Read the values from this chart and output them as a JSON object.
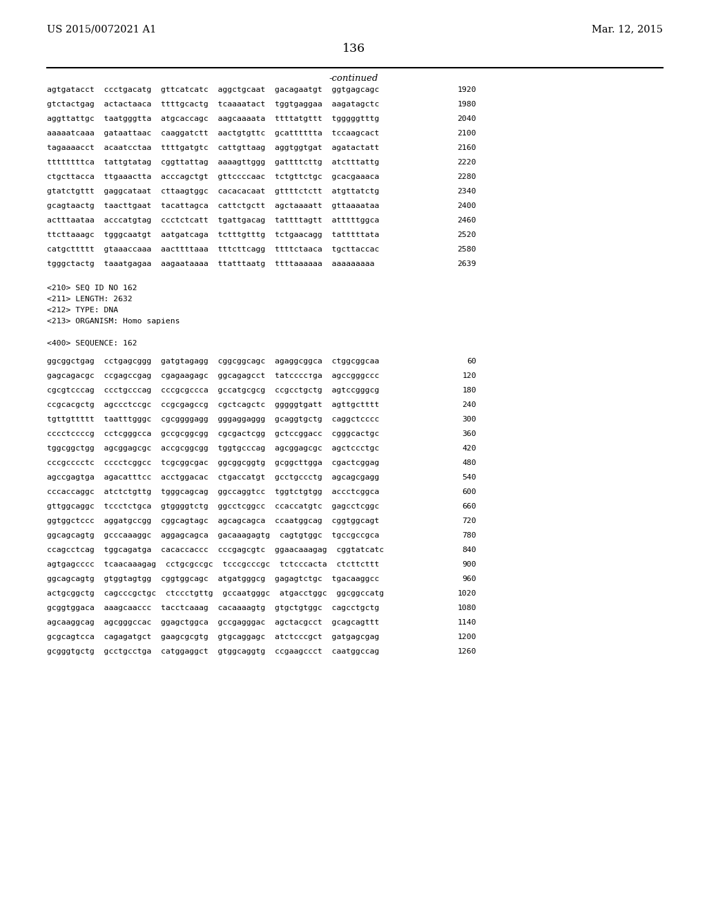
{
  "header_left": "US 2015/0072021 A1",
  "header_right": "Mar. 12, 2015",
  "page_number": "136",
  "continued_label": "-continued",
  "bg_color": "#ffffff",
  "text_color": "#000000",
  "sequence_lines_top": [
    [
      "agtgatacct  ccctgacatg  gttcatcatc  aggctgcaat  gacagaatgt  ggtgagcagc",
      "1920"
    ],
    [
      "gtctactgag  actactaaca  ttttgcactg  tcaaaatact  tggtgaggaa  aagatagctc",
      "1980"
    ],
    [
      "aggttattgc  taatgggtta  atgcaccagc  aagcaaaata  ttttatgttt  tgggggtttg",
      "2040"
    ],
    [
      "aaaaatcaaa  gataattaac  caaggatctt  aactgtgttc  gcatttttta  tccaagcact",
      "2100"
    ],
    [
      "tagaaaacct  acaatcctaa  ttttgatgtc  cattgttaag  aggtggtgat  agatactatt",
      "2160"
    ],
    [
      "ttttttttca  tattgtatag  cggttattag  aaaagttggg  gattttcttg  atctttattg",
      "2220"
    ],
    [
      "ctgcttacca  ttgaaactta  acccagctgt  gttccccaac  tctgttctgc  gcacgaaaca",
      "2280"
    ],
    [
      "gtatctgttt  gaggcataat  cttaagtggc  cacacacaat  gttttctctt  atgttatctg",
      "2340"
    ],
    [
      "gcagtaactg  taacttgaat  tacattagca  cattctgctt  agctaaaatt  gttaaaataa",
      "2400"
    ],
    [
      "actttaataa  acccatgtag  ccctctcatt  tgattgacag  tattttagtt  atttttggca",
      "2460"
    ],
    [
      "ttcttaaagc  tgggcaatgt  aatgatcaga  tctttgtttg  tctgaacagg  tatttttata",
      "2520"
    ],
    [
      "catgcttttt  gtaaaccaaa  aacttttaaa  tttcttcagg  ttttctaaca  tgcttaccac",
      "2580"
    ],
    [
      "tgggctactg  taaatgagaa  aagaataaaa  ttatttaatg  ttttaaaaaa  aaaaaaaaa",
      "2639"
    ]
  ],
  "meta_lines": [
    "<210> SEQ ID NO 162",
    "<211> LENGTH: 2632",
    "<212> TYPE: DNA",
    "<213> ORGANISM: Homo sapiens",
    "",
    "<400> SEQUENCE: 162"
  ],
  "sequence_lines_bottom": [
    [
      "ggcggctgag  cctgagcggg  gatgtagagg  cggcggcagc  agaggcggca  ctggcggcaa",
      "60"
    ],
    [
      "gagcagacgc  ccgagccgag  cgagaagagc  ggcagagcct  tatccccтga  agccgggccc",
      "120"
    ],
    [
      "cgcgtcccag  ccctgcccag  cccgcgccca  gccatgcgcg  ccgcctgctg  agtccgggcg",
      "180"
    ],
    [
      "ccgcacgctg  agccctccgc  ccgcgagccg  cgctcagctc  gggggtgatt  agttgctttt",
      "240"
    ],
    [
      "tgttgttttt  taatttgggc  cgcggggagg  gggaggaggg  gcaggtgctg  caggctcccc",
      "300"
    ],
    [
      "cccctccccg  cctcgggcca  gccgcggcgg  cgcgactcgg  gctccggacc  cgggcactgc",
      "360"
    ],
    [
      "tggcggctgg  agcggagcgc  accgcggcgg  tggtgcccag  agcggagcgc  agctccctgc",
      "420"
    ],
    [
      "cccgcccctc  cccctcggcc  tcgcggcgac  ggcggcggtg  gcggcttgga  cgactcggag",
      "480"
    ],
    [
      "agccgagtga  agacatttcc  acctggacac  ctgaccatgt  gcctgccctg  agcagcgagg",
      "540"
    ],
    [
      "cccaccaggc  atctctgttg  tgggcagcag  ggccaggtcc  tggtctgtgg  accctcggca",
      "600"
    ],
    [
      "gttggcaggc  tccctctgca  gtggggtctg  ggcctcggcc  ccaccatgtc  gagcctcggc",
      "660"
    ],
    [
      "ggtggctccc  aggatgccgg  cggcagtagc  agcagcagca  ccaatggcag  cggtggcagt",
      "720"
    ],
    [
      "ggcagcagtg  gcccaaaggc  aggagcagca  gacaaagagtg  cagtgtggc  tgccgccgca",
      "780"
    ],
    [
      "ccagcctcag  tggcagatga  cacaccaccc  cccgagcgtc  ggaacaaagag  cggtatcatc",
      "840"
    ],
    [
      "agtgagcccc  tcaacaaagag  cctgcgccgc  tcccgcccgc  tctcccacta  ctcttcttt",
      "900"
    ],
    [
      "ggcagcagtg  gtggtagtgg  cggtggcagc  atgatgggcg  gagagtctgc  tgacaaggcc",
      "960"
    ],
    [
      "actgcggctg  cagcccgctgc  ctccctgttg  gccaatgggc  atgacctggc  ggcggccatg",
      "1020"
    ],
    [
      "gcggtggaca  aaagcaaccc  tacctcaaag  cacaaaagtg  gtgctgtggc  cagcctgctg",
      "1080"
    ],
    [
      "agcaaggcag  agcgggccac  ggagctggca  gccgagggac  agctacgcct  gcagcagttt",
      "1140"
    ],
    [
      "gcgcagtcca  cagagatgct  gaagcgcgtg  gtgcaggagc  atctcccgct  gatgagcgag",
      "1200"
    ],
    [
      "gcgggtgctg  gcctgcctga  catggaggct  gtggcaggtg  ccgaagccct  caatggccag",
      "1260"
    ]
  ]
}
